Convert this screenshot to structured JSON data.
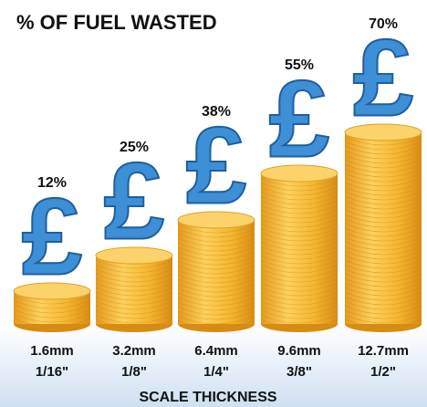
{
  "chart_data": {
    "type": "bar",
    "title": "% OF FUEL WASTED",
    "x_label": "SCALE THICKNESS",
    "categories": [
      "1.6mm",
      "3.2mm",
      "6.4mm",
      "9.6mm",
      "12.7mm"
    ],
    "category_fractions": [
      "1/16\"",
      "1/8\"",
      "1/4\"",
      "3/8\"",
      "1/2\""
    ],
    "values": [
      12,
      25,
      38,
      55,
      70
    ],
    "value_labels": [
      "12%",
      "25%",
      "38%",
      "55%",
      "70%"
    ],
    "symbol": "£",
    "color": "#f2b233",
    "symbol_color": "#3d8fd6"
  }
}
